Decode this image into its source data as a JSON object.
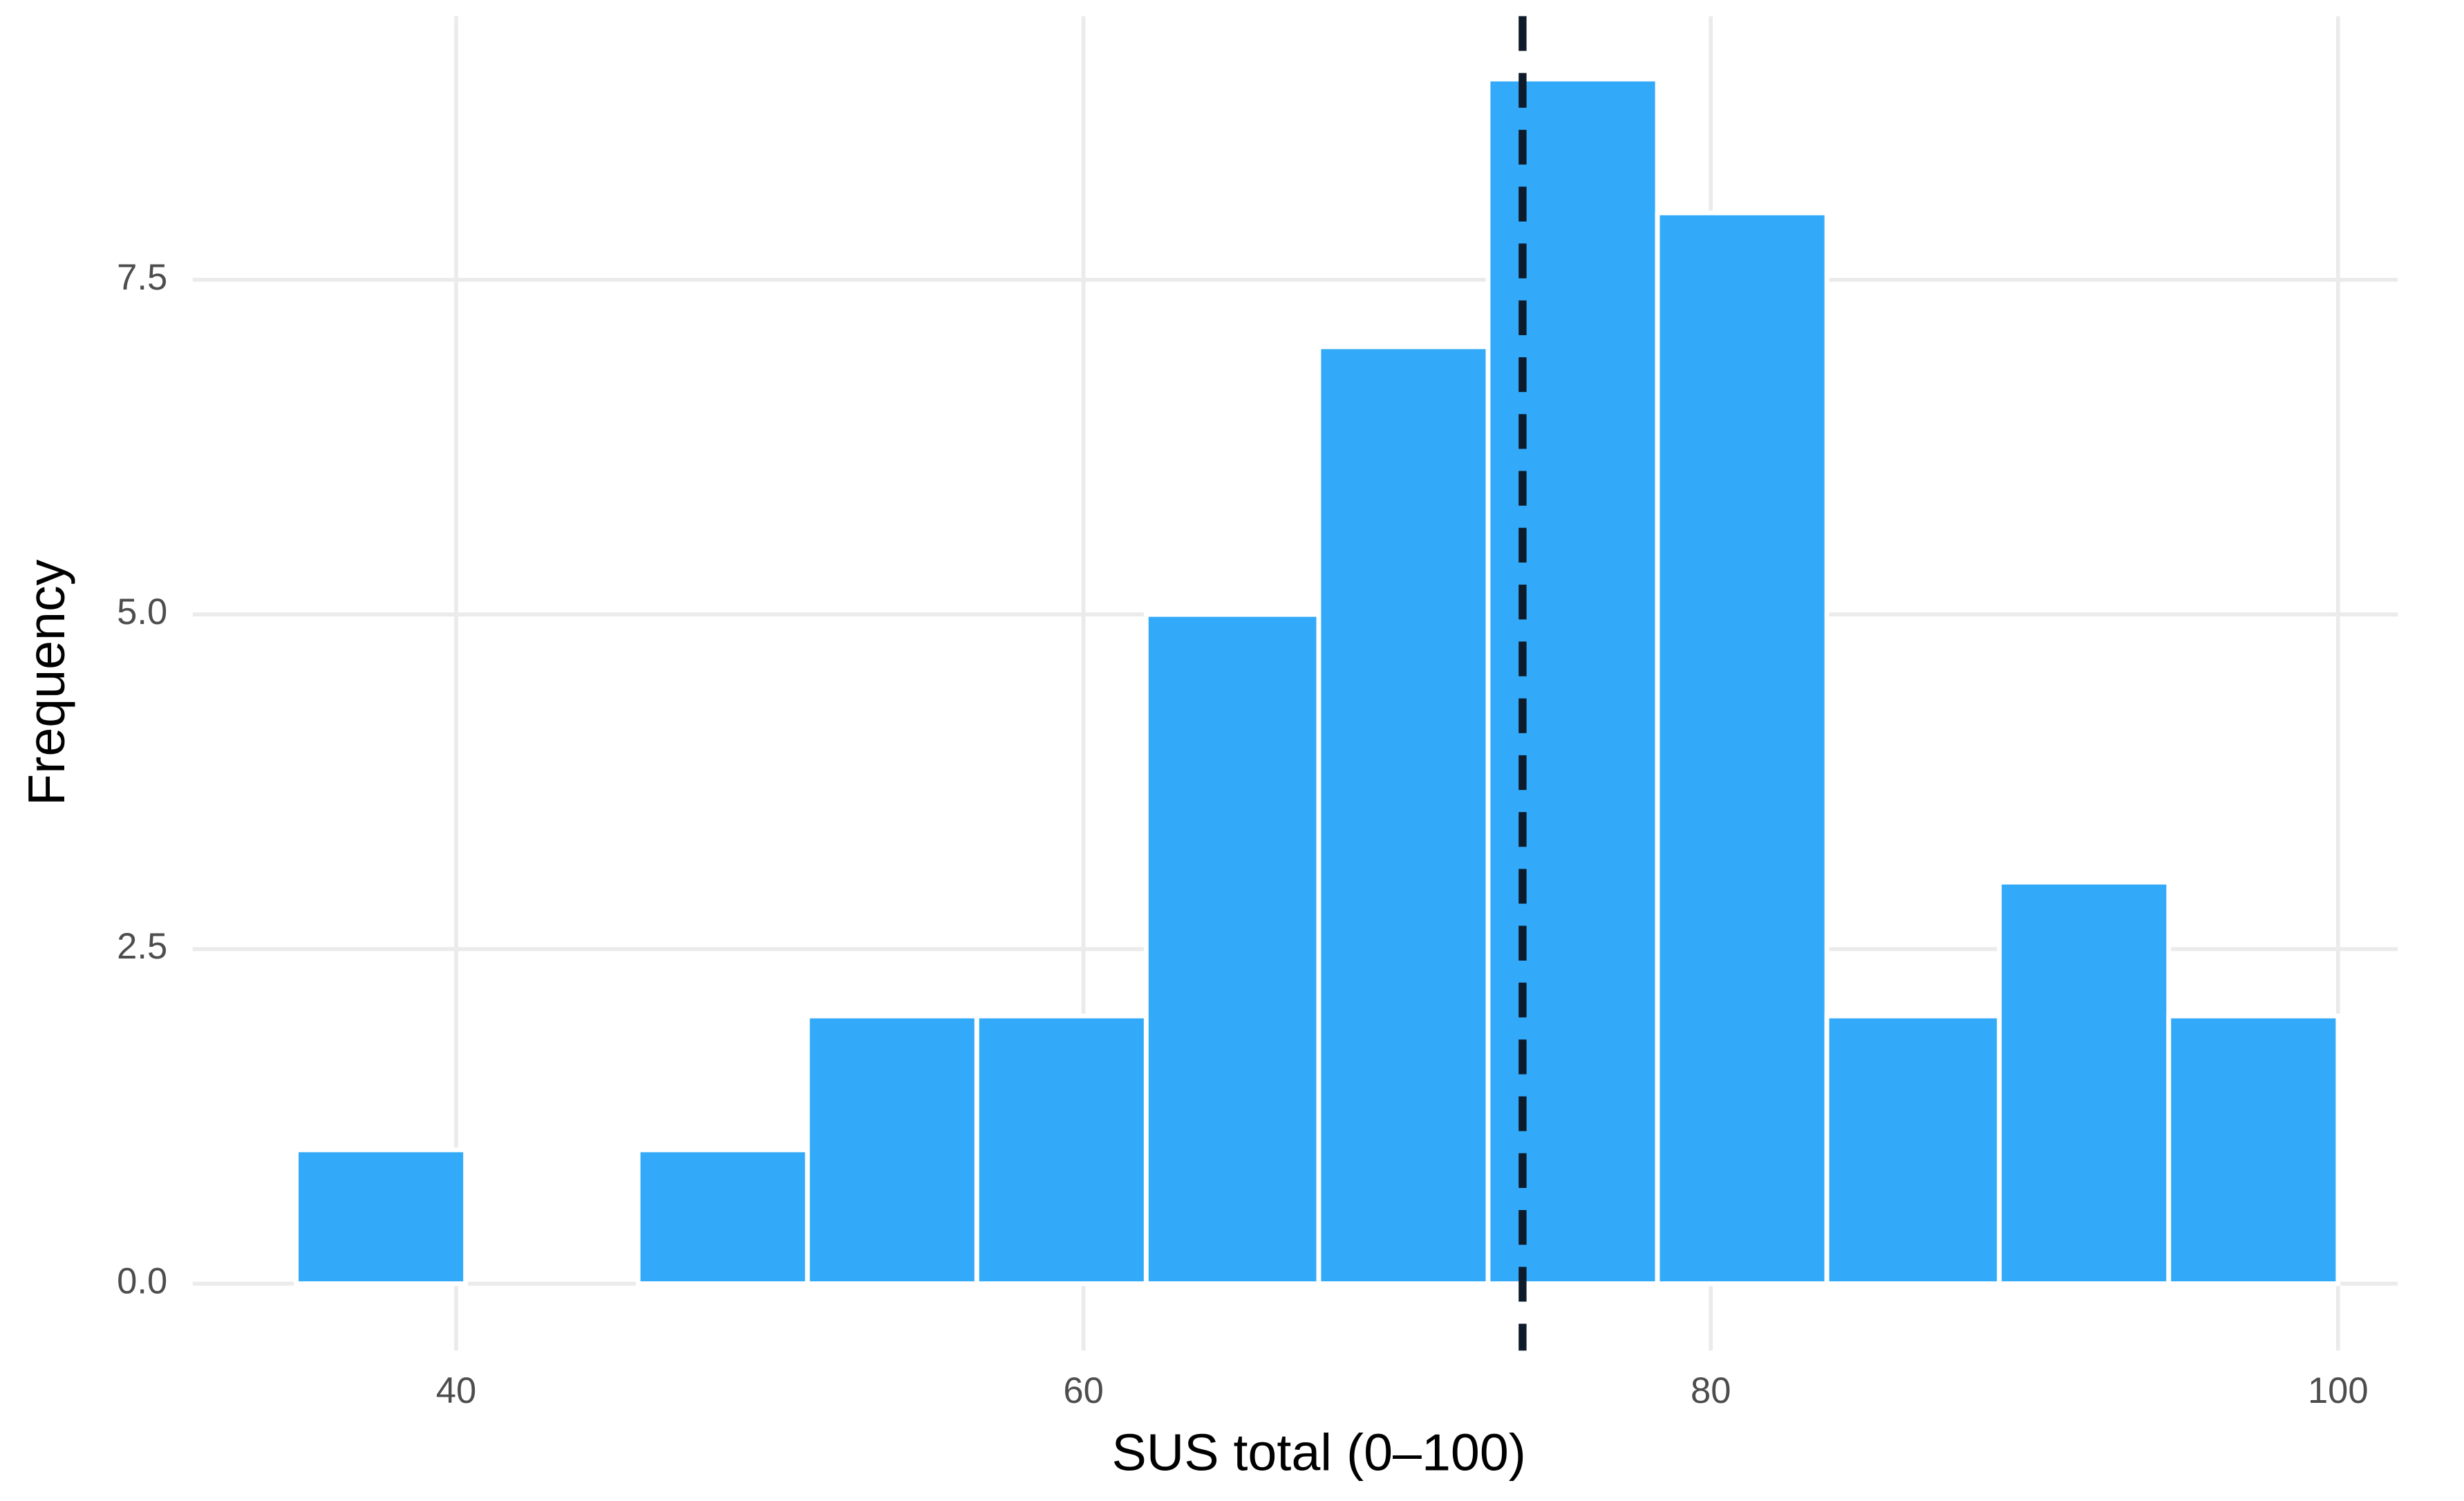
{
  "chart_data": {
    "type": "histogram",
    "x_label": "SUS total (0–100)",
    "y_label": "Frequency",
    "bins": [
      34.9,
      40.3,
      45.8,
      51.2,
      56.6,
      62.0,
      67.5,
      72.9,
      78.3,
      83.7,
      89.2,
      94.6,
      100.0
    ],
    "values": [
      1,
      0,
      1,
      2,
      2,
      5,
      7,
      9,
      8,
      2,
      3,
      2
    ],
    "color": "#33aaf9",
    "mean_line": 74.0,
    "mean_line_color": "#0d1b2a",
    "xlim": [
      31.6,
      101.9
    ],
    "ylim": [
      -0.5,
      9.47
    ],
    "xticks": [
      40,
      60,
      80,
      100
    ],
    "yticks": [
      {
        "value": 0,
        "label": "0.0"
      },
      2.5,
      {
        "value": 5,
        "label": "5.0"
      },
      7.5
    ],
    "grid": true
  }
}
